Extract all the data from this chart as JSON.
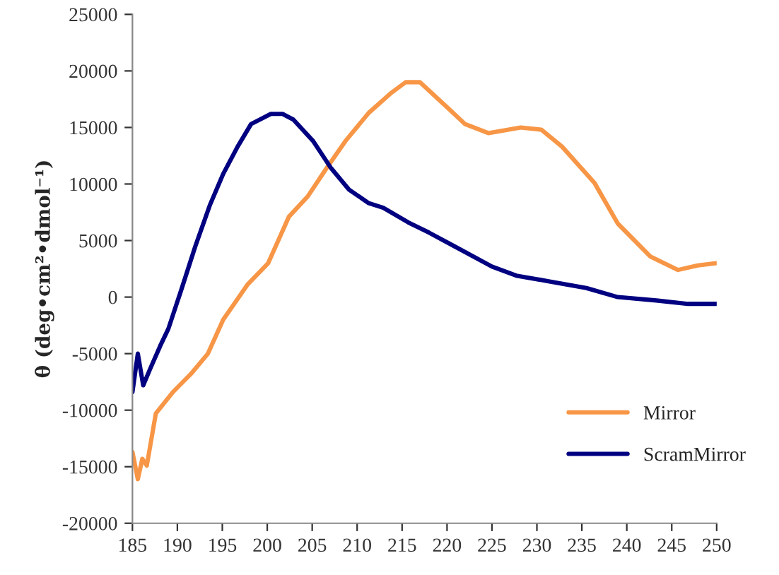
{
  "chart_data": {
    "type": "line",
    "ylabel": "θ (deg•cm²•dmol⁻¹)",
    "xlim": [
      185,
      250
    ],
    "xticks": [
      185,
      190,
      195,
      200,
      205,
      210,
      215,
      220,
      225,
      230,
      235,
      240,
      245,
      250
    ],
    "ylim": [
      -20000,
      25000
    ],
    "yticks": [
      -20000,
      -15000,
      -10000,
      -5000,
      0,
      5000,
      10000,
      15000,
      20000,
      25000
    ],
    "grid": false,
    "legend": "bottom right",
    "marker": "none",
    "line_style": "solid",
    "series": [
      {
        "name": "Mirror",
        "color": "#f79646",
        "x": [
          185,
          185.6,
          186.1,
          186.6,
          187.6,
          189.5,
          191.5,
          193.4,
          195.1,
          197.8,
          200.1,
          202.4,
          204.5,
          206.6,
          208.7,
          211.3,
          213.7,
          215.4,
          217,
          220.4,
          222,
          224.6,
          228.2,
          230.5,
          232.8,
          236.4,
          239,
          242.6,
          245.7,
          247.9,
          250
        ],
        "values": [
          -13700,
          -16100,
          -14300,
          -14900,
          -10300,
          -8400,
          -6800,
          -5000,
          -2000,
          1100,
          3000,
          7100,
          8900,
          11400,
          13800,
          16300,
          18000,
          19000,
          19000,
          16500,
          15300,
          14500,
          15000,
          14800,
          13300,
          10100,
          6500,
          3600,
          2400,
          2800,
          3000
        ]
      },
      {
        "name": "ScramMirror",
        "color": "#000080",
        "x": [
          185,
          185.6,
          186.2,
          187,
          188.1,
          189,
          190.5,
          192,
          193.6,
          195.1,
          196.7,
          198.2,
          200.4,
          201.7,
          202.9,
          205.1,
          207.1,
          209.1,
          211.3,
          212.9,
          215.7,
          218,
          220.8,
          225,
          227.7,
          231.3,
          235.5,
          239,
          243.3,
          246.8,
          250
        ],
        "values": [
          -8400,
          -5000,
          -7800,
          -6300,
          -4300,
          -2800,
          800,
          4500,
          8100,
          10900,
          13300,
          15300,
          16200,
          16200,
          15700,
          13800,
          11400,
          9500,
          8300,
          7900,
          6600,
          5700,
          4500,
          2700,
          1900,
          1400,
          800,
          0,
          -300,
          -600,
          -600
        ]
      }
    ]
  }
}
